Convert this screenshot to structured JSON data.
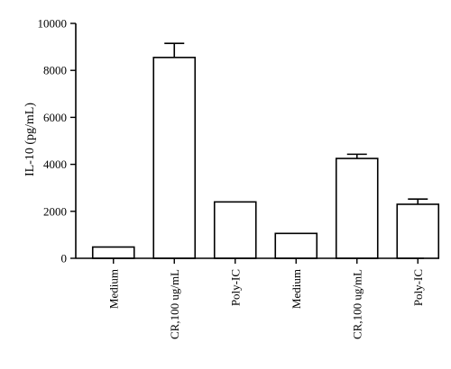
{
  "chart_data": {
    "type": "bar",
    "title": "",
    "xlabel": "",
    "ylabel": "IL-10 (pg/mL)",
    "ylim": [
      0,
      10000
    ],
    "yticks": [
      0,
      2000,
      4000,
      6000,
      8000,
      10000
    ],
    "grid": false,
    "categories": [
      "Medium",
      "CR,100 ug/mL",
      "Poly-IC",
      "Medium",
      "CR,100 ug/mL",
      "Poly-IC"
    ],
    "values": [
      480,
      8550,
      2400,
      1060,
      4250,
      2300
    ],
    "error_upper": [
      0,
      600,
      0,
      0,
      180,
      220
    ],
    "colors": {
      "bar_fill": "#ffffff",
      "bar_stroke": "#000000"
    }
  }
}
